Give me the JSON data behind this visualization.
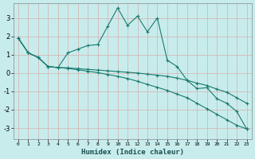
{
  "xlabel": "Humidex (Indice chaleur)",
  "ylabel": "",
  "bg_color": "#c8ecec",
  "grid_color": "#d4b8b8",
  "line_color": "#1a7a6e",
  "xlim": [
    -0.5,
    23.5
  ],
  "ylim": [
    -3.6,
    3.8
  ],
  "xticks": [
    0,
    1,
    2,
    3,
    4,
    5,
    6,
    7,
    8,
    9,
    10,
    11,
    12,
    13,
    14,
    15,
    16,
    17,
    18,
    19,
    20,
    21,
    22,
    23
  ],
  "yticks": [
    -3,
    -2,
    -1,
    0,
    1,
    2,
    3
  ],
  "line1_x": [
    0,
    1,
    2,
    3,
    4,
    5,
    6,
    7,
    8,
    9,
    10,
    11,
    12,
    13,
    14,
    15,
    16,
    17,
    18,
    19,
    20,
    21,
    22,
    23
  ],
  "line1_y": [
    1.9,
    1.1,
    0.85,
    0.35,
    0.3,
    1.1,
    1.3,
    1.5,
    1.55,
    2.55,
    3.55,
    2.6,
    3.1,
    2.25,
    3.0,
    0.7,
    0.35,
    -0.4,
    -0.85,
    -0.8,
    -1.4,
    -1.65,
    -2.1,
    -3.05
  ],
  "line2_x": [
    0,
    1,
    2,
    3,
    4,
    5,
    6,
    7,
    8,
    9,
    10,
    11,
    12,
    13,
    14,
    15,
    16,
    17,
    18,
    19,
    20,
    21,
    22,
    23
  ],
  "line2_y": [
    1.9,
    1.1,
    0.85,
    0.35,
    0.3,
    0.28,
    0.24,
    0.2,
    0.16,
    0.12,
    0.08,
    0.04,
    0.0,
    -0.06,
    -0.12,
    -0.18,
    -0.28,
    -0.4,
    -0.55,
    -0.68,
    -0.88,
    -1.05,
    -1.35,
    -1.65
  ],
  "line3_x": [
    0,
    1,
    2,
    3,
    4,
    5,
    6,
    7,
    8,
    9,
    10,
    11,
    12,
    13,
    14,
    15,
    16,
    17,
    18,
    19,
    20,
    21,
    22,
    23
  ],
  "line3_y": [
    1.9,
    1.1,
    0.85,
    0.35,
    0.3,
    0.25,
    0.18,
    0.1,
    0.02,
    -0.08,
    -0.18,
    -0.3,
    -0.45,
    -0.62,
    -0.78,
    -0.95,
    -1.15,
    -1.35,
    -1.65,
    -1.95,
    -2.25,
    -2.55,
    -2.85,
    -3.05
  ]
}
